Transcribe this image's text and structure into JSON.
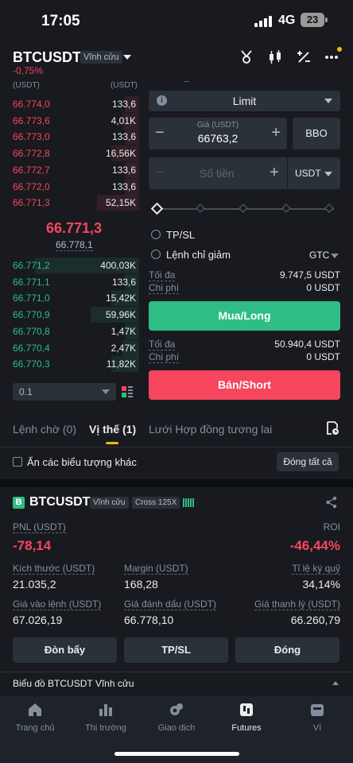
{
  "status_bar": {
    "time": "17:05",
    "network": "4G",
    "battery": "23"
  },
  "header": {
    "symbol": "BTCUSDT",
    "contract_tag": "Vĩnh cửu",
    "change": "-0,75%",
    "icons": [
      "funding-icon",
      "candlestick-icon",
      "percent-icon",
      "more-icon"
    ]
  },
  "order_book": {
    "price_header": "(USDT)",
    "qty_header": "(USDT)",
    "asks": [
      {
        "price": "66.774,0",
        "qty": "133,6"
      },
      {
        "price": "66.773,6",
        "qty": "4,01K"
      },
      {
        "price": "66.773,0",
        "qty": "133,6"
      },
      {
        "price": "66.772,8",
        "qty": "16,56K"
      },
      {
        "price": "66.772,7",
        "qty": "133,6"
      },
      {
        "price": "66.772,0",
        "qty": "133,6"
      },
      {
        "price": "66.771,3",
        "qty": "52,15K"
      }
    ],
    "last_price": "66.771,3",
    "mark_price": "66.778,1",
    "bids": [
      {
        "price": "66.771,2",
        "qty": "400,03K"
      },
      {
        "price": "66.771,1",
        "qty": "133,6"
      },
      {
        "price": "66.771,0",
        "qty": "15,42K"
      },
      {
        "price": "66.770,9",
        "qty": "59,96K"
      },
      {
        "price": "66.770,8",
        "qty": "1,47K"
      },
      {
        "price": "66.770,4",
        "qty": "2,47K"
      },
      {
        "price": "66.770,3",
        "qty": "11,82K"
      }
    ],
    "ask_depth": [
      0.1,
      0.12,
      0.1,
      0.2,
      0.1,
      0.1,
      0.3
    ],
    "bid_depth": [
      0.75,
      0.1,
      0.2,
      0.35,
      0.1,
      0.12,
      0.2
    ],
    "step": "0.1"
  },
  "order_form": {
    "order_type": "Limit",
    "price_label": "Giá (USDT)",
    "price_value": "66763,2",
    "bbo_label": "BBO",
    "amount_placeholder": "Số tiền",
    "amount_unit": "USDT",
    "tpsl_label": "TP/SL",
    "reduce_only_label": "Lệnh chỉ giảm",
    "tif": "GTC",
    "buy": {
      "max_label": "Tối đa",
      "max_value": "9.747,5 USDT",
      "cost_label": "Chi phí",
      "cost_value": "0 USDT",
      "button": "Mua/Long"
    },
    "sell": {
      "max_label": "Tối đa",
      "max_value": "50.940,4 USDT",
      "cost_label": "Chi phí",
      "cost_value": "0 USDT",
      "button": "Bán/Short"
    }
  },
  "tabs": {
    "items": [
      "Lệnh chờ (0)",
      "Vị thế (1)",
      "Lưới Hợp đồng tương lai"
    ],
    "active": "Vị thế (1)"
  },
  "positions_bar": {
    "hide_symbols_label": "Ẩn các biểu tượng khác",
    "close_all": "Đóng tất cả"
  },
  "position": {
    "badge": "B",
    "symbol": "BTCUSDT",
    "contract_tag": "Vĩnh cửu",
    "margin_tag": "Cross 125X",
    "pnl_label": "PNL (USDT)",
    "pnl_value": "-78,14",
    "roi_label": "ROI",
    "roi_value": "-46,44%",
    "size_label": "Kích thước (USDT)",
    "size_value": "21.035,2",
    "margin_label": "Margin (USDT)",
    "margin_value": "168,28",
    "margin_ratio_label": "Tỉ lệ ký quỹ",
    "margin_ratio_value": "34,14%",
    "entry_label": "Giá vào lệnh (USDT)",
    "entry_value": "67.026,19",
    "mark_label": "Giá đánh dấu (USDT)",
    "mark_value": "66.778,10",
    "liq_label": "Giá thanh lý (USDT)",
    "liq_value": "66.260,79",
    "actions": [
      "Đòn bẩy",
      "TP/SL",
      "Đóng"
    ]
  },
  "chart_row": {
    "label": "Biểu đồ BTCUSDT Vĩnh cửu"
  },
  "bottom_nav": {
    "items": [
      "Trang chủ",
      "Thị trường",
      "Giao dịch",
      "Futures",
      "Ví"
    ],
    "active": "Futures"
  },
  "colors": {
    "bg": "#181a20",
    "green": "#2ebd85",
    "red": "#f6465d",
    "yellow": "#f0b90b"
  }
}
